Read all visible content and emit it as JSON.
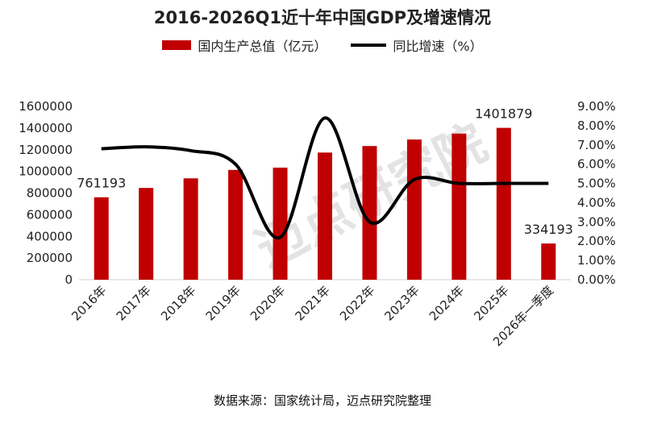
{
  "chart_data": {
    "type": "bar",
    "title": "2016-2026Q1近十年中国GDP及增速情况",
    "categories": [
      "2016年",
      "2017年",
      "2018年",
      "2019年",
      "2020年",
      "2021年",
      "2022年",
      "2023年",
      "2024年",
      "2025年",
      "2026年一季度"
    ],
    "series": [
      {
        "name": "国内生产总值（亿元）",
        "kind": "bar",
        "axis": "left",
        "color": "#C00000",
        "values": [
          761193,
          847140,
          935974,
          1013567,
          1034868,
          1173823,
          1234029,
          1294272,
          1349084,
          1401879,
          334193
        ]
      },
      {
        "name": "同比增速（%）",
        "kind": "line",
        "axis": "right",
        "color": "#000000",
        "smooth": true,
        "values": [
          6.8,
          6.9,
          6.7,
          6.0,
          2.2,
          8.4,
          3.0,
          5.2,
          5.0,
          5.0,
          5.0
        ]
      }
    ],
    "data_labels": [
      {
        "index": 0,
        "text": "761193"
      },
      {
        "index": 9,
        "text": "1401879"
      },
      {
        "index": 10,
        "text": "334193"
      }
    ],
    "y_left": {
      "min": 0,
      "max": 1600000,
      "ticks": [
        "0",
        "200000",
        "400000",
        "600000",
        "800000",
        "1000000",
        "1200000",
        "1400000",
        "1600000"
      ]
    },
    "y_right": {
      "min": 0,
      "max": 9,
      "ticks": [
        "0.00%",
        "1.00%",
        "2.00%",
        "3.00%",
        "4.00%",
        "5.00%",
        "6.00%",
        "7.00%",
        "8.00%",
        "9.00%"
      ]
    },
    "grid": false,
    "legend_position": "top",
    "watermark": "迈点研究院"
  },
  "source_text": "数据来源：国家统计局，迈点研究院整理"
}
